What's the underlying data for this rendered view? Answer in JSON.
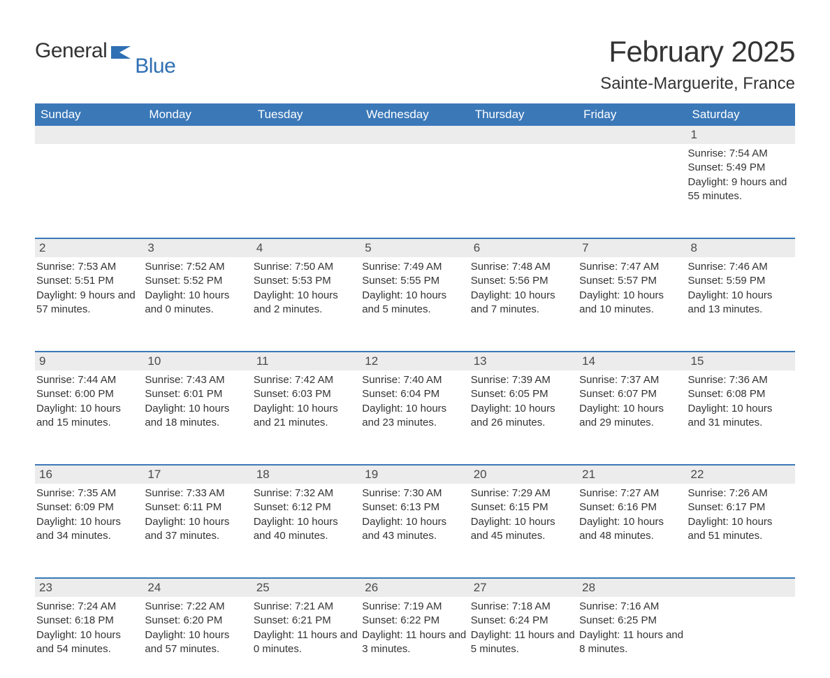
{
  "brand": {
    "part1": "General",
    "part2": "Blue",
    "flag_color": "#2f6fb3"
  },
  "title": "February 2025",
  "location": "Sainte-Marguerite, France",
  "colors": {
    "header_bg": "#3b78b8",
    "header_text": "#ffffff",
    "number_bg": "#ececec",
    "text": "#333333",
    "rule": "#3b78b8"
  },
  "dayNames": [
    "Sunday",
    "Monday",
    "Tuesday",
    "Wednesday",
    "Thursday",
    "Friday",
    "Saturday"
  ],
  "weeks": [
    [
      {
        "n": "",
        "sunrise": "",
        "sunset": "",
        "daylight": ""
      },
      {
        "n": "",
        "sunrise": "",
        "sunset": "",
        "daylight": ""
      },
      {
        "n": "",
        "sunrise": "",
        "sunset": "",
        "daylight": ""
      },
      {
        "n": "",
        "sunrise": "",
        "sunset": "",
        "daylight": ""
      },
      {
        "n": "",
        "sunrise": "",
        "sunset": "",
        "daylight": ""
      },
      {
        "n": "",
        "sunrise": "",
        "sunset": "",
        "daylight": ""
      },
      {
        "n": "1",
        "sunrise": "Sunrise: 7:54 AM",
        "sunset": "Sunset: 5:49 PM",
        "daylight": "Daylight: 9 hours and 55 minutes."
      }
    ],
    [
      {
        "n": "2",
        "sunrise": "Sunrise: 7:53 AM",
        "sunset": "Sunset: 5:51 PM",
        "daylight": "Daylight: 9 hours and 57 minutes."
      },
      {
        "n": "3",
        "sunrise": "Sunrise: 7:52 AM",
        "sunset": "Sunset: 5:52 PM",
        "daylight": "Daylight: 10 hours and 0 minutes."
      },
      {
        "n": "4",
        "sunrise": "Sunrise: 7:50 AM",
        "sunset": "Sunset: 5:53 PM",
        "daylight": "Daylight: 10 hours and 2 minutes."
      },
      {
        "n": "5",
        "sunrise": "Sunrise: 7:49 AM",
        "sunset": "Sunset: 5:55 PM",
        "daylight": "Daylight: 10 hours and 5 minutes."
      },
      {
        "n": "6",
        "sunrise": "Sunrise: 7:48 AM",
        "sunset": "Sunset: 5:56 PM",
        "daylight": "Daylight: 10 hours and 7 minutes."
      },
      {
        "n": "7",
        "sunrise": "Sunrise: 7:47 AM",
        "sunset": "Sunset: 5:57 PM",
        "daylight": "Daylight: 10 hours and 10 minutes."
      },
      {
        "n": "8",
        "sunrise": "Sunrise: 7:46 AM",
        "sunset": "Sunset: 5:59 PM",
        "daylight": "Daylight: 10 hours and 13 minutes."
      }
    ],
    [
      {
        "n": "9",
        "sunrise": "Sunrise: 7:44 AM",
        "sunset": "Sunset: 6:00 PM",
        "daylight": "Daylight: 10 hours and 15 minutes."
      },
      {
        "n": "10",
        "sunrise": "Sunrise: 7:43 AM",
        "sunset": "Sunset: 6:01 PM",
        "daylight": "Daylight: 10 hours and 18 minutes."
      },
      {
        "n": "11",
        "sunrise": "Sunrise: 7:42 AM",
        "sunset": "Sunset: 6:03 PM",
        "daylight": "Daylight: 10 hours and 21 minutes."
      },
      {
        "n": "12",
        "sunrise": "Sunrise: 7:40 AM",
        "sunset": "Sunset: 6:04 PM",
        "daylight": "Daylight: 10 hours and 23 minutes."
      },
      {
        "n": "13",
        "sunrise": "Sunrise: 7:39 AM",
        "sunset": "Sunset: 6:05 PM",
        "daylight": "Daylight: 10 hours and 26 minutes."
      },
      {
        "n": "14",
        "sunrise": "Sunrise: 7:37 AM",
        "sunset": "Sunset: 6:07 PM",
        "daylight": "Daylight: 10 hours and 29 minutes."
      },
      {
        "n": "15",
        "sunrise": "Sunrise: 7:36 AM",
        "sunset": "Sunset: 6:08 PM",
        "daylight": "Daylight: 10 hours and 31 minutes."
      }
    ],
    [
      {
        "n": "16",
        "sunrise": "Sunrise: 7:35 AM",
        "sunset": "Sunset: 6:09 PM",
        "daylight": "Daylight: 10 hours and 34 minutes."
      },
      {
        "n": "17",
        "sunrise": "Sunrise: 7:33 AM",
        "sunset": "Sunset: 6:11 PM",
        "daylight": "Daylight: 10 hours and 37 minutes."
      },
      {
        "n": "18",
        "sunrise": "Sunrise: 7:32 AM",
        "sunset": "Sunset: 6:12 PM",
        "daylight": "Daylight: 10 hours and 40 minutes."
      },
      {
        "n": "19",
        "sunrise": "Sunrise: 7:30 AM",
        "sunset": "Sunset: 6:13 PM",
        "daylight": "Daylight: 10 hours and 43 minutes."
      },
      {
        "n": "20",
        "sunrise": "Sunrise: 7:29 AM",
        "sunset": "Sunset: 6:15 PM",
        "daylight": "Daylight: 10 hours and 45 minutes."
      },
      {
        "n": "21",
        "sunrise": "Sunrise: 7:27 AM",
        "sunset": "Sunset: 6:16 PM",
        "daylight": "Daylight: 10 hours and 48 minutes."
      },
      {
        "n": "22",
        "sunrise": "Sunrise: 7:26 AM",
        "sunset": "Sunset: 6:17 PM",
        "daylight": "Daylight: 10 hours and 51 minutes."
      }
    ],
    [
      {
        "n": "23",
        "sunrise": "Sunrise: 7:24 AM",
        "sunset": "Sunset: 6:18 PM",
        "daylight": "Daylight: 10 hours and 54 minutes."
      },
      {
        "n": "24",
        "sunrise": "Sunrise: 7:22 AM",
        "sunset": "Sunset: 6:20 PM",
        "daylight": "Daylight: 10 hours and 57 minutes."
      },
      {
        "n": "25",
        "sunrise": "Sunrise: 7:21 AM",
        "sunset": "Sunset: 6:21 PM",
        "daylight": "Daylight: 11 hours and 0 minutes."
      },
      {
        "n": "26",
        "sunrise": "Sunrise: 7:19 AM",
        "sunset": "Sunset: 6:22 PM",
        "daylight": "Daylight: 11 hours and 3 minutes."
      },
      {
        "n": "27",
        "sunrise": "Sunrise: 7:18 AM",
        "sunset": "Sunset: 6:24 PM",
        "daylight": "Daylight: 11 hours and 5 minutes."
      },
      {
        "n": "28",
        "sunrise": "Sunrise: 7:16 AM",
        "sunset": "Sunset: 6:25 PM",
        "daylight": "Daylight: 11 hours and 8 minutes."
      },
      {
        "n": "",
        "sunrise": "",
        "sunset": "",
        "daylight": ""
      }
    ]
  ]
}
